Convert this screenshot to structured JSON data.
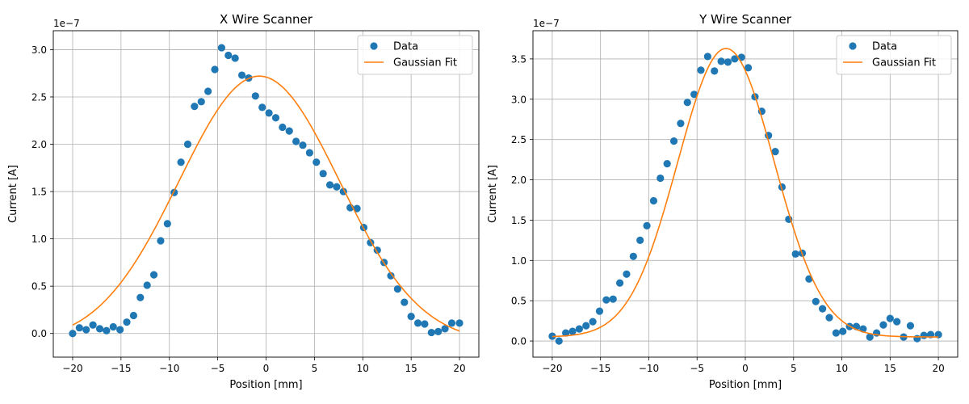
{
  "chart_data": [
    {
      "type": "scatter",
      "title": "X Wire Scanner",
      "xlabel": "Position [mm]",
      "ylabel": "Current [A]",
      "y_offset_label": "1e−7",
      "xlim": [
        -22,
        22
      ],
      "ylim": [
        -0.25,
        3.2
      ],
      "xticks": [
        -20,
        -15,
        -10,
        -5,
        0,
        5,
        10,
        15,
        20
      ],
      "xtick_labels": [
        "−20",
        "−15",
        "−10",
        "−5",
        "0",
        "5",
        "10",
        "15",
        "20"
      ],
      "yticks": [
        0,
        0.5,
        1.0,
        1.5,
        2.0,
        2.5,
        3.0
      ],
      "ytick_labels": [
        "0.0",
        "0.5",
        "1.0",
        "1.5",
        "2.0",
        "2.5",
        "3.0"
      ],
      "grid": true,
      "legend_position": "top-right",
      "series": [
        {
          "name": "Data",
          "kind": "points",
          "color": "#1f77b4",
          "x": [
            -20.0,
            -19.3,
            -18.6,
            -17.9,
            -17.2,
            -16.5,
            -15.8,
            -15.1,
            -14.4,
            -13.7,
            -13.0,
            -12.3,
            -11.6,
            -10.9,
            -10.2,
            -9.5,
            -8.8,
            -8.1,
            -7.4,
            -6.7,
            -6.0,
            -5.3,
            -4.6,
            -3.9,
            -3.2,
            -2.5,
            -1.8,
            -1.1,
            -0.4,
            0.3,
            1.0,
            1.7,
            2.4,
            3.1,
            3.8,
            4.5,
            5.2,
            5.9,
            6.6,
            7.3,
            8.0,
            8.7,
            9.4,
            10.1,
            10.8,
            11.5,
            12.2,
            12.9,
            13.6,
            14.3,
            15.0,
            15.7,
            16.4,
            17.1,
            17.8,
            18.5,
            19.2,
            20.0
          ],
          "y": [
            0.0,
            0.06,
            0.04,
            0.09,
            0.05,
            0.03,
            0.07,
            0.04,
            0.12,
            0.19,
            0.38,
            0.51,
            0.62,
            0.98,
            1.16,
            1.49,
            1.81,
            2.0,
            2.4,
            2.45,
            2.56,
            2.79,
            3.02,
            2.94,
            2.91,
            2.73,
            2.7,
            2.51,
            2.39,
            2.33,
            2.28,
            2.18,
            2.14,
            2.03,
            1.99,
            1.91,
            1.81,
            1.69,
            1.57,
            1.55,
            1.5,
            1.33,
            1.32,
            1.12,
            0.96,
            0.88,
            0.75,
            0.61,
            0.47,
            0.33,
            0.18,
            0.11,
            0.1,
            0.01,
            0.02,
            0.05,
            0.11,
            0.11
          ]
        },
        {
          "name": "Gaussian Fit",
          "kind": "gaussian",
          "color": "#ff7f0e",
          "amplitude": 2.82,
          "center": -0.7,
          "sigma": 8.3,
          "baseline": -0.1,
          "x_range": [
            -20,
            20
          ]
        }
      ]
    },
    {
      "type": "scatter",
      "title": "Y Wire Scanner",
      "xlabel": "Position [mm]",
      "ylabel": "Current [A]",
      "y_offset_label": "1e−7",
      "xlim": [
        -22,
        22
      ],
      "ylim": [
        -0.2,
        3.85
      ],
      "xticks": [
        -20,
        -15,
        -10,
        -5,
        0,
        5,
        10,
        15,
        20
      ],
      "xtick_labels": [
        "−20",
        "−15",
        "−10",
        "−5",
        "0",
        "5",
        "10",
        "15",
        "20"
      ],
      "yticks": [
        0,
        0.5,
        1.0,
        1.5,
        2.0,
        2.5,
        3.0,
        3.5
      ],
      "ytick_labels": [
        "0.0",
        "0.5",
        "1.0",
        "1.5",
        "2.0",
        "2.5",
        "3.0",
        "3.5"
      ],
      "grid": true,
      "legend_position": "top-right",
      "series": [
        {
          "name": "Data",
          "kind": "points",
          "color": "#1f77b4",
          "x": [
            -20.0,
            -19.3,
            -18.6,
            -17.9,
            -17.2,
            -16.5,
            -15.8,
            -15.1,
            -14.4,
            -13.7,
            -13.0,
            -12.3,
            -11.6,
            -10.9,
            -10.2,
            -9.5,
            -8.8,
            -8.1,
            -7.4,
            -6.7,
            -6.0,
            -5.3,
            -4.6,
            -3.9,
            -3.2,
            -2.5,
            -1.8,
            -1.1,
            -0.4,
            0.3,
            1.0,
            1.7,
            2.4,
            3.1,
            3.8,
            4.5,
            5.2,
            5.9,
            6.6,
            7.3,
            8.0,
            8.7,
            9.4,
            10.1,
            10.8,
            11.5,
            12.2,
            12.9,
            13.6,
            14.3,
            15.0,
            15.7,
            16.4,
            17.1,
            17.8,
            18.5,
            19.2,
            20.0
          ],
          "y": [
            0.06,
            0.0,
            0.1,
            0.12,
            0.15,
            0.19,
            0.24,
            0.37,
            0.51,
            0.52,
            0.72,
            0.83,
            1.05,
            1.25,
            1.43,
            1.74,
            2.02,
            2.2,
            2.48,
            2.7,
            2.96,
            3.06,
            3.36,
            3.53,
            3.35,
            3.47,
            3.46,
            3.5,
            3.52,
            3.39,
            3.03,
            2.85,
            2.55,
            2.35,
            1.91,
            1.51,
            1.08,
            1.09,
            0.77,
            0.49,
            0.4,
            0.29,
            0.1,
            0.12,
            0.18,
            0.18,
            0.15,
            0.05,
            0.1,
            0.2,
            0.28,
            0.24,
            0.05,
            0.19,
            0.03,
            0.07,
            0.08,
            0.08
          ]
        },
        {
          "name": "Gaussian Fit",
          "kind": "gaussian",
          "color": "#ff7f0e",
          "amplitude": 3.58,
          "center": -2.0,
          "sigma": 5.0,
          "baseline": 0.05,
          "x_range": [
            -20,
            20
          ]
        }
      ]
    }
  ]
}
